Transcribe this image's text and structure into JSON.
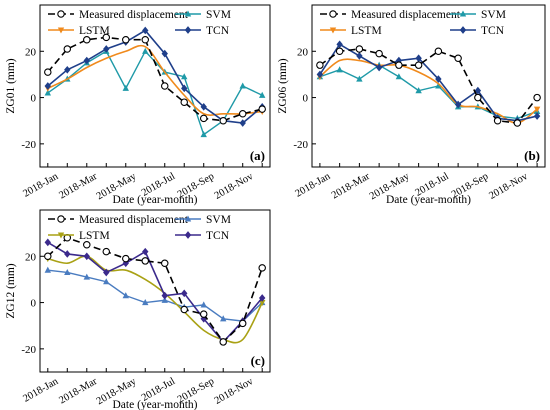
{
  "series_styles": [
    {
      "color": "#000000",
      "dash": "7,4",
      "marker": "circle-open",
      "width": 1.6
    },
    {
      "color": "#f08a1c",
      "dash": "",
      "marker": "triangle-down",
      "width": 1.6
    },
    {
      "color": "#1f9aa8",
      "dash": "",
      "marker": "triangle-up",
      "width": 1.4
    },
    {
      "color": "#1f3f8a",
      "dash": "",
      "marker": "diamond",
      "width": 1.6
    }
  ],
  "series_styles_c": [
    {
      "color": "#000000",
      "dash": "7,4",
      "marker": "circle-open",
      "width": 1.6
    },
    {
      "color": "#a9a114",
      "dash": "",
      "marker": "triangle-down",
      "width": 1.6
    },
    {
      "color": "#4a7cc0",
      "dash": "",
      "marker": "triangle-up",
      "width": 1.4
    },
    {
      "color": "#3b2a8c",
      "dash": "",
      "marker": "diamond",
      "width": 1.6
    }
  ],
  "chart_data": [
    {
      "type": "line",
      "panel_label": "(a)",
      "ylabel": "ZG01 (mm)",
      "xlabel": "Date (year-month)",
      "x_ticks": [
        "2018-Jan",
        "2018-Mar",
        "2018-May",
        "2018-Jul",
        "2018-Sep",
        "2018-Nov"
      ],
      "x_months": [
        1,
        2,
        3,
        4,
        5,
        6,
        7,
        8,
        9,
        10,
        11,
        12
      ],
      "ylim": [
        -30,
        40
      ],
      "y_ticks": [
        -20,
        0,
        20
      ],
      "legend": "top",
      "series": [
        {
          "name": "Measured displacement",
          "values": [
            11,
            21,
            25,
            26,
            25,
            25,
            5,
            -2,
            -9,
            -10,
            -7,
            -5
          ]
        },
        {
          "name": "LSTM",
          "values": [
            4,
            8,
            13,
            17,
            20,
            22,
            11,
            1,
            -7,
            -7,
            -7,
            -6
          ]
        },
        {
          "name": "SVM",
          "values": [
            2,
            8,
            15,
            20,
            4,
            20,
            11,
            9,
            -16,
            -10,
            5,
            1
          ]
        },
        {
          "name": "TCN",
          "values": [
            5,
            12,
            16,
            21,
            24,
            29,
            19,
            4,
            -4,
            -10,
            -11,
            -4
          ]
        }
      ]
    },
    {
      "type": "line",
      "panel_label": "(b)",
      "ylabel": "ZG06 (mm)",
      "xlabel": "Date (year-month)",
      "x_ticks": [
        "2018-Jan",
        "2018-Mar",
        "2018-May",
        "2018-Jul",
        "2018-Sep",
        "2018-Nov"
      ],
      "x_months": [
        1,
        2,
        3,
        4,
        5,
        6,
        7,
        8,
        9,
        10,
        11,
        12
      ],
      "ylim": [
        -30,
        40
      ],
      "y_ticks": [
        -20,
        0,
        20
      ],
      "legend": "top",
      "series": [
        {
          "name": "Measured displacement",
          "values": [
            14,
            20,
            21,
            19,
            14,
            14,
            20,
            17,
            0,
            -10,
            -11,
            0
          ]
        },
        {
          "name": "LSTM",
          "values": [
            9,
            16,
            16,
            14,
            14,
            11,
            6,
            -3,
            -4,
            -7,
            -11,
            -5
          ]
        },
        {
          "name": "SVM",
          "values": [
            9,
            12,
            8,
            14,
            9,
            3,
            5,
            -4,
            -4,
            -8,
            -9,
            -6
          ]
        },
        {
          "name": "TCN",
          "values": [
            10,
            23,
            18,
            13,
            16,
            17,
            8,
            -3,
            3,
            -9,
            -10,
            -8
          ]
        }
      ]
    },
    {
      "type": "line",
      "panel_label": "(c)",
      "ylabel": "ZG12 (mm)",
      "xlabel": "Date (year-month)",
      "x_ticks": [
        "2018-Jan",
        "2018-Mar",
        "2018-May",
        "2018-Jul",
        "2018-Sep",
        "2018-Nov"
      ],
      "x_months": [
        1,
        2,
        3,
        4,
        5,
        6,
        7,
        8,
        9,
        10,
        11,
        12
      ],
      "ylim": [
        -30,
        40
      ],
      "y_ticks": [
        -20,
        0,
        20
      ],
      "legend": "top",
      "series": [
        {
          "name": "Measured displacement",
          "values": [
            20,
            28,
            25,
            22,
            19,
            18,
            17,
            -3,
            -5,
            -17,
            -9,
            15
          ]
        },
        {
          "name": "LSTM",
          "values": [
            19,
            17,
            20,
            14,
            14,
            10,
            4,
            -4,
            -12,
            -16,
            -16,
            0
          ]
        },
        {
          "name": "SVM",
          "values": [
            14,
            13,
            11,
            9,
            3,
            0,
            1,
            -2,
            -1,
            -7,
            -8,
            0
          ]
        },
        {
          "name": "TCN",
          "values": [
            26,
            21,
            20,
            13,
            17,
            22,
            3,
            4,
            -7,
            -17,
            -8,
            2
          ]
        }
      ]
    }
  ]
}
